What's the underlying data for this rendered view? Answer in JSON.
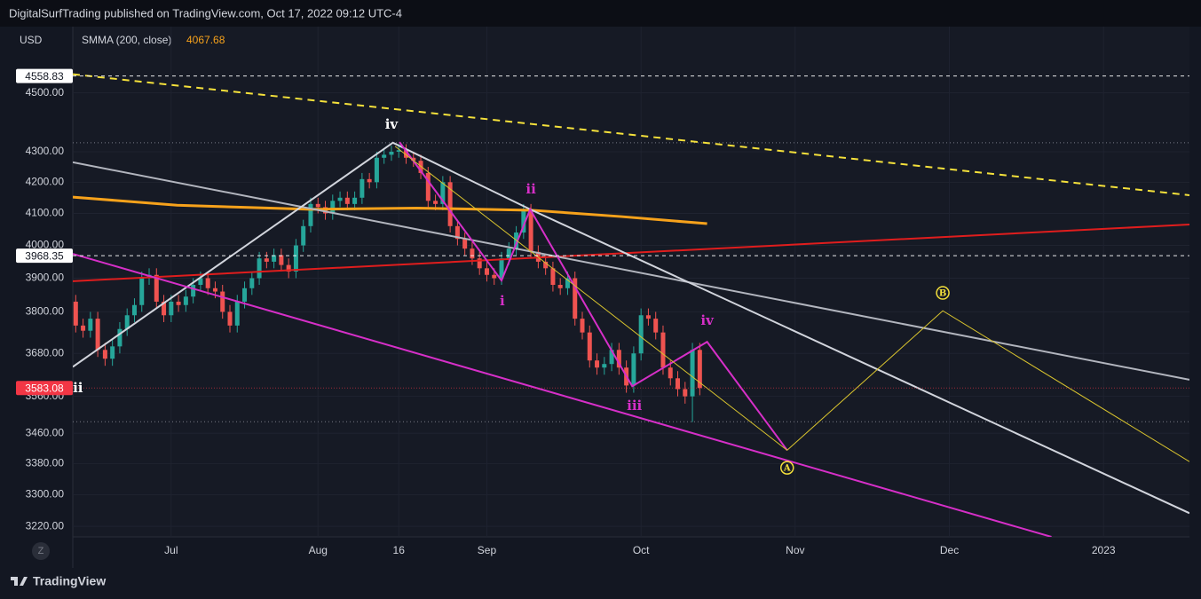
{
  "header": "DigitalSurfTrading published on TradingView.com, Oct 17, 2022 09:12 UTC-4",
  "footer": "TradingView",
  "zoom_button": "Z",
  "chart_data": {
    "type": "candlestick",
    "currency": "USD",
    "log_scale": true,
    "grid": true,
    "up_color": "#26a69a",
    "down_color": "#ef5350",
    "xlim": [
      -13.4,
      138.7
    ],
    "ylim": [
      3194,
      4736
    ],
    "xticks": [
      {
        "value": 0,
        "label": "Jul"
      },
      {
        "value": 20,
        "label": "Aug"
      },
      {
        "value": 31,
        "label": "16"
      },
      {
        "value": 43,
        "label": "Sep"
      },
      {
        "value": 64,
        "label": "Oct"
      },
      {
        "value": 85,
        "label": "Nov"
      },
      {
        "value": 106,
        "label": "Dec"
      },
      {
        "value": 127,
        "label": "2023"
      }
    ],
    "yticks": [
      {
        "value": 3220,
        "label": "3220.00"
      },
      {
        "value": 3300,
        "label": "3300.00"
      },
      {
        "value": 3380,
        "label": "3380.00"
      },
      {
        "value": 3460,
        "label": "3460.00"
      },
      {
        "value": 3560,
        "label": "3560.00"
      },
      {
        "value": 3680,
        "label": "3680.00"
      },
      {
        "value": 3800,
        "label": "3800.00"
      },
      {
        "value": 3900,
        "label": "3900.00"
      },
      {
        "value": 4000,
        "label": "4000.00"
      },
      {
        "value": 4100,
        "label": "4100.00"
      },
      {
        "value": 4200,
        "label": "4200.00"
      },
      {
        "value": 4300,
        "label": "4300.00"
      },
      {
        "value": 4500,
        "label": "4500.00"
      }
    ],
    "x": [
      -13,
      -12,
      -11,
      -10,
      -9,
      -8,
      -7,
      -6,
      -5,
      -4,
      -3,
      -2,
      -1,
      0,
      1,
      2,
      3,
      4,
      5,
      6,
      7,
      8,
      9,
      10,
      11,
      12,
      13,
      14,
      15,
      16,
      17,
      18,
      19,
      20,
      21,
      22,
      23,
      24,
      25,
      26,
      27,
      28,
      29,
      30,
      31,
      32,
      33,
      34,
      35,
      36,
      37,
      38,
      39,
      40,
      41,
      42,
      43,
      44,
      45,
      46,
      47,
      48,
      49,
      50,
      51,
      52,
      53,
      54,
      55,
      56,
      57,
      58,
      59,
      60,
      61,
      62,
      63,
      64,
      65,
      66,
      67,
      68,
      69,
      70,
      71,
      72
    ],
    "open": [
      3830,
      3760,
      3745,
      3780,
      3690,
      3665,
      3700,
      3750,
      3790,
      3820,
      3900,
      3910,
      3830,
      3790,
      3830,
      3820,
      3845,
      3880,
      3900,
      3870,
      3860,
      3800,
      3760,
      3830,
      3870,
      3900,
      3960,
      3950,
      3970,
      3940,
      3920,
      4000,
      4060,
      4130,
      4120,
      4100,
      4140,
      4150,
      4130,
      4150,
      4210,
      4200,
      4280,
      4290,
      4300,
      4305,
      4280,
      4270,
      4230,
      4140,
      4130,
      4200,
      4060,
      4020,
      3990,
      3960,
      3930,
      3910,
      3900,
      3960,
      3990,
      4040,
      4110,
      3980,
      3950,
      3930,
      3880,
      3870,
      3900,
      3780,
      3740,
      3660,
      3640,
      3650,
      3690,
      3640,
      3590,
      3680,
      3790,
      3780,
      3740,
      3640,
      3610,
      3580,
      3560,
      3690
    ],
    "high": [
      3850,
      3780,
      3800,
      3800,
      3710,
      3720,
      3770,
      3810,
      3840,
      3920,
      3930,
      3930,
      3850,
      3850,
      3850,
      3865,
      3900,
      3920,
      3920,
      3890,
      3880,
      3820,
      3850,
      3890,
      3920,
      3980,
      3980,
      3990,
      3990,
      3960,
      4020,
      4080,
      4150,
      4150,
      4140,
      4160,
      4170,
      4170,
      4170,
      4230,
      4230,
      4300,
      4310,
      4320,
      4325,
      4325,
      4300,
      4290,
      4250,
      4160,
      4220,
      4220,
      4080,
      4040,
      4010,
      3980,
      3950,
      3930,
      3980,
      4010,
      4060,
      4130,
      4130,
      4000,
      3970,
      3950,
      3900,
      3920,
      3920,
      3800,
      3760,
      3680,
      3670,
      3710,
      3710,
      3660,
      3700,
      3810,
      3810,
      3800,
      3760,
      3660,
      3630,
      3600,
      3710,
      3710
    ],
    "low": [
      3740,
      3725,
      3725,
      3670,
      3645,
      3645,
      3680,
      3730,
      3770,
      3800,
      3880,
      3810,
      3770,
      3770,
      3800,
      3800,
      3825,
      3860,
      3850,
      3840,
      3780,
      3740,
      3740,
      3810,
      3850,
      3880,
      3930,
      3930,
      3920,
      3900,
      3900,
      3980,
      4040,
      4100,
      4080,
      4080,
      4120,
      4110,
      4110,
      4130,
      4180,
      4180,
      4260,
      4270,
      4280,
      4260,
      4250,
      4210,
      4120,
      4110,
      4110,
      4040,
      4000,
      3970,
      3940,
      3910,
      3890,
      3880,
      3880,
      3940,
      3970,
      4020,
      3960,
      3930,
      3910,
      3860,
      3850,
      3850,
      3760,
      3720,
      3640,
      3620,
      3620,
      3630,
      3620,
      3570,
      3570,
      3660,
      3760,
      3720,
      3620,
      3590,
      3560,
      3540,
      3490,
      3563
    ],
    "close": [
      3760,
      3745,
      3780,
      3690,
      3665,
      3700,
      3750,
      3790,
      3820,
      3900,
      3910,
      3830,
      3790,
      3830,
      3820,
      3845,
      3880,
      3900,
      3870,
      3860,
      3800,
      3760,
      3830,
      3870,
      3900,
      3960,
      3950,
      3970,
      3940,
      3920,
      4000,
      4060,
      4130,
      4120,
      4100,
      4140,
      4150,
      4130,
      4150,
      4210,
      4200,
      4280,
      4290,
      4300,
      4305,
      4280,
      4270,
      4230,
      4140,
      4130,
      4200,
      4060,
      4020,
      3990,
      3960,
      3930,
      3910,
      3900,
      3960,
      3990,
      4040,
      4110,
      3980,
      3950,
      3930,
      3880,
      3870,
      3900,
      3780,
      3740,
      3660,
      3640,
      3650,
      3690,
      3640,
      3590,
      3680,
      3790,
      3780,
      3740,
      3640,
      3610,
      3580,
      3560,
      3690,
      3583.08
    ],
    "smma": {
      "name": "SMMA (200, close)",
      "color": "#f7a21b",
      "x": [
        -13.4,
        0.8,
        19,
        33.5,
        49.2,
        61.3,
        73
      ],
      "values": [
        4152,
        4126,
        4113,
        4117,
        4110,
        4090,
        4067.68
      ]
    },
    "price_lines": [
      {
        "value": 4558.83,
        "color": "#ffffff",
        "tag_color": "#ffffff",
        "text_color": "#131722"
      },
      {
        "value": 3968.35,
        "color": "#ffffff",
        "tag_color": "#ffffff",
        "text_color": "#131722"
      },
      {
        "value": 3583.08,
        "color": "#f23645",
        "tag_color": "#f23645",
        "text_color": "#ffffff"
      }
    ],
    "levels": [
      4330,
      3491
    ],
    "trendlines": [
      {
        "color": "#f5e13b",
        "width": 2,
        "dash": "8 6",
        "points": [
          [
            -13.4,
            4565
          ],
          [
            138.7,
            4158
          ]
        ]
      },
      {
        "color": "#e01d1d",
        "width": 2,
        "dash": "",
        "points": [
          [
            -13.4,
            3891
          ],
          [
            138.7,
            4065
          ]
        ]
      },
      {
        "color": "#b2b5be",
        "width": 2,
        "dash": "",
        "points": [
          [
            -13.4,
            4265
          ],
          [
            138.7,
            3606
          ]
        ]
      },
      {
        "color": "#d1d4dc",
        "width": 2,
        "dash": "",
        "points": [
          [
            -13.4,
            3642
          ],
          [
            30.2,
            4330
          ],
          [
            48.9,
            4113
          ],
          [
            138.7,
            3253
          ]
        ]
      },
      {
        "color": "#d62fc8",
        "width": 2,
        "dash": "",
        "points": [
          [
            -13.4,
            3974
          ],
          [
            119.9,
            3194
          ]
        ]
      },
      {
        "color": "#d62fc8",
        "width": 2,
        "dash": "",
        "points": [
          [
            31.1,
            4332
          ],
          [
            45,
            3893
          ],
          [
            48.9,
            4113
          ],
          [
            62.8,
            3588
          ],
          [
            73,
            3713
          ],
          [
            83.9,
            3415
          ]
        ]
      },
      {
        "color": "#d8c32e",
        "width": 1,
        "dash": "",
        "points": [
          [
            30.5,
            4318
          ],
          [
            83.9,
            3415
          ],
          [
            105.1,
            3803
          ],
          [
            138.7,
            3385
          ]
        ]
      }
    ],
    "annotations": [
      {
        "text": "iv",
        "x": 30,
        "price": 4392,
        "color": "#ffffff",
        "circled": false
      },
      {
        "text": "ii",
        "x": 49,
        "price": 4178,
        "color": "#d62fc8",
        "circled": false
      },
      {
        "text": "i",
        "x": 45.1,
        "price": 3832,
        "color": "#d62fc8",
        "circled": false
      },
      {
        "text": "iii",
        "x": 63.1,
        "price": 3535,
        "color": "#d62fc8",
        "circled": false
      },
      {
        "text": "iv",
        "x": 73,
        "price": 3775,
        "color": "#d62fc8",
        "circled": false
      },
      {
        "text": "A",
        "x": 83.9,
        "price": 3369,
        "color": "#f5e13b",
        "circled": true
      },
      {
        "text": "B",
        "x": 105.1,
        "price": 3856,
        "color": "#f5e13b",
        "circled": true
      },
      {
        "text": "ii",
        "x": -12.7,
        "price": 3583,
        "color": "#ffffff",
        "circled": false
      }
    ]
  }
}
